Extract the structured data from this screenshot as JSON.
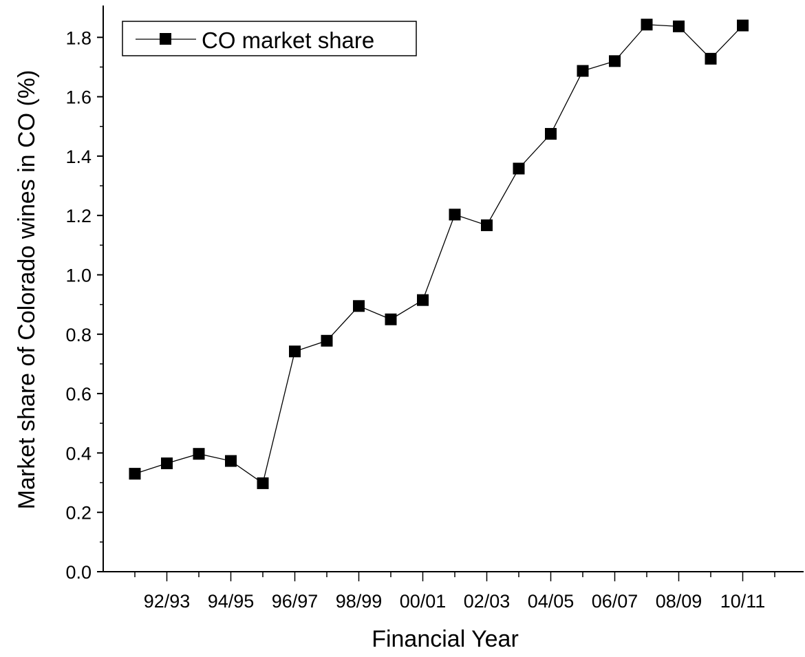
{
  "chart_data": {
    "type": "line",
    "title": "",
    "xlabel": "Financial Year",
    "ylabel": "Market share of Colorado wines in CO (%)",
    "x_tick_labels": [
      "92/93",
      "94/95",
      "96/97",
      "98/99",
      "00/01",
      "02/03",
      "04/05",
      "06/07",
      "08/09",
      "10/11"
    ],
    "y_tick_labels": [
      "0.0",
      "0.2",
      "0.4",
      "0.6",
      "0.8",
      "1.0",
      "1.2",
      "1.4",
      "1.6",
      "1.8"
    ],
    "ylim": [
      0,
      1.9
    ],
    "y_ticks": [
      0,
      0.2,
      0.4,
      0.6,
      0.8,
      1.0,
      1.2,
      1.4,
      1.6,
      1.8
    ],
    "grid": false,
    "legend_position": "top-left",
    "series": [
      {
        "name": "CO market share",
        "marker": "square",
        "color": "#000000",
        "points": [
          {
            "x": "91/92",
            "y": 0.33
          },
          {
            "x": "92/93",
            "y": 0.365
          },
          {
            "x": "93/94",
            "y": 0.397
          },
          {
            "x": "94/95",
            "y": 0.373
          },
          {
            "x": "95/96",
            "y": 0.298
          },
          {
            "x": "96/97",
            "y": 0.742
          },
          {
            "x": "97/98",
            "y": 0.778
          },
          {
            "x": "98/99",
            "y": 0.895
          },
          {
            "x": "99/00",
            "y": 0.85
          },
          {
            "x": "00/01",
            "y": 0.915
          },
          {
            "x": "01/02",
            "y": 1.203
          },
          {
            "x": "02/03",
            "y": 1.167
          },
          {
            "x": "03/04",
            "y": 1.358
          },
          {
            "x": "04/05",
            "y": 1.475
          },
          {
            "x": "05/06",
            "y": 1.687
          },
          {
            "x": "06/07",
            "y": 1.72
          },
          {
            "x": "07/08",
            "y": 1.843
          },
          {
            "x": "08/09",
            "y": 1.837
          },
          {
            "x": "09/10",
            "y": 1.728
          },
          {
            "x": "10/11",
            "y": 1.84
          }
        ]
      }
    ]
  }
}
